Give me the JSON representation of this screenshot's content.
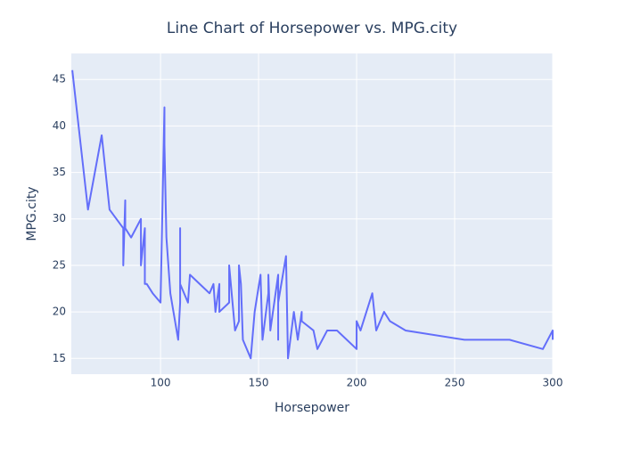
{
  "chart_data": {
    "type": "line",
    "title": "Line Chart of Horsepower vs. MPG.city",
    "x_label": "Horsepower",
    "y_label": "MPG.city",
    "x": [
      55,
      63,
      70,
      74,
      81,
      81,
      82,
      82,
      85,
      90,
      90,
      92,
      92,
      93,
      96,
      100,
      102,
      102,
      103,
      105,
      109,
      110,
      110,
      110,
      114,
      115,
      125,
      127,
      128,
      130,
      130,
      135,
      135,
      138,
      140,
      140,
      141,
      142,
      146,
      148,
      151,
      152,
      155,
      155,
      156,
      160,
      160,
      160,
      164,
      165,
      168,
      170,
      172,
      172,
      178,
      180,
      185,
      190,
      200,
      200,
      202,
      208,
      210,
      214,
      217,
      225,
      255,
      278,
      295,
      300,
      300
    ],
    "series": [
      {
        "name": "MPG.city",
        "color": "#636efa",
        "values": [
          46,
          31,
          39,
          31,
          29,
          25,
          32,
          29,
          28,
          30,
          25,
          29,
          23,
          23,
          22,
          21,
          42,
          38,
          28,
          22,
          17,
          21,
          29,
          23,
          21,
          24,
          22,
          23,
          20,
          23,
          20,
          21,
          25,
          18,
          19,
          25,
          23,
          17,
          15,
          20,
          24,
          17,
          22,
          24,
          18,
          24,
          17,
          21,
          26,
          15,
          20,
          17,
          20,
          19,
          18,
          16,
          18,
          18,
          16,
          19,
          18,
          22,
          18,
          20,
          19,
          18,
          17,
          17,
          16,
          18,
          17
        ]
      }
    ],
    "xlim": [
      54.5,
      300
    ],
    "ylim": [
      13.3,
      47.8
    ],
    "xticks": [
      100,
      150,
      200,
      250,
      300
    ],
    "yticks": [
      15,
      20,
      25,
      30,
      35,
      40,
      45
    ],
    "grid": true
  }
}
